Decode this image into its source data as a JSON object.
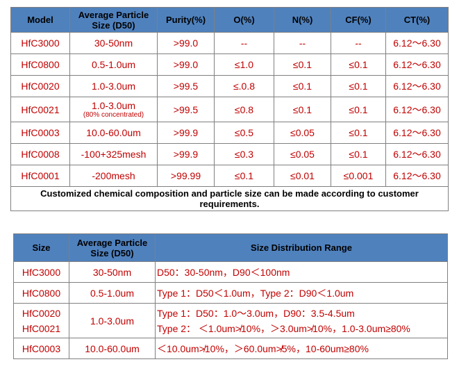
{
  "table1": {
    "headers": [
      "Model",
      "Average Particle Size (D50)",
      "Purity(%)",
      "O(%)",
      "N(%)",
      "CF(%)",
      "CT(%)"
    ],
    "rows": [
      [
        "HfC3000",
        "30-50nm",
        ">99.0",
        "--",
        "--",
        "--",
        "6.12～6.30"
      ],
      [
        "HfC0800",
        "0.5-1.0um",
        ">99.0",
        "≤1.0",
        "≤0.1",
        "≤0.1",
        "6.12～6.30"
      ],
      [
        "HfC0020",
        "1.0-3.0um",
        ">99.5",
        "≤.0.8",
        "≤0.1",
        "≤0.1",
        "6.12～6.30"
      ],
      [
        "HfC0021",
        "1.0-3.0um",
        ">99.5",
        "≤0.8",
        "≤0.1",
        "≤0.1",
        "6.12～6.30"
      ],
      [
        "HfC0003",
        "10.0-60.0um",
        ">99.9",
        "≤0.5",
        "≤0.05",
        "≤0.1",
        "6.12～6.30"
      ],
      [
        "HfC0008",
        "-100+325mesh",
        ">99.9",
        "≤0.3",
        "≤0.05",
        "≤0.1",
        "6.12～6.30"
      ],
      [
        "HfC0001",
        "-200mesh",
        ">99.99",
        "≤0.1",
        "≤0.01",
        "≤0.001",
        "6.12～6.30"
      ]
    ],
    "hfc0021_note": "(80% concentrated)",
    "footer": "Customized chemical composition and particle size can be made according to customer requirements."
  },
  "table2": {
    "headers": [
      "Size",
      "Average Particle Size (D50)",
      "Size Distribution Range"
    ],
    "rows": [
      {
        "size": "HfC3000",
        "d50": "30-50nm",
        "range": "D50：30-50nm，D90＜100nm"
      },
      {
        "size": "HfC0800",
        "d50": "0.5-1.0um",
        "range": "Type 1：D50＜1.0um，Type 2：D90＜1.0um"
      },
      {
        "size_a": "HfC0020",
        "size_b": "HfC0021",
        "d50": "1.0-3.0um",
        "range_a": "Type 1：D50：1.0～3.0um，D90：3.5-4.5um",
        "range_b": "Type 2： ＜1.0um≯10%，＞3.0um≯10%，1.0-3.0um≥80%"
      },
      {
        "size": "HfC0003",
        "d50": "10.0-60.0um",
        "range": "＜10.0um≯10%，＞60.0um≯5%，10-60um≥80%"
      }
    ]
  }
}
